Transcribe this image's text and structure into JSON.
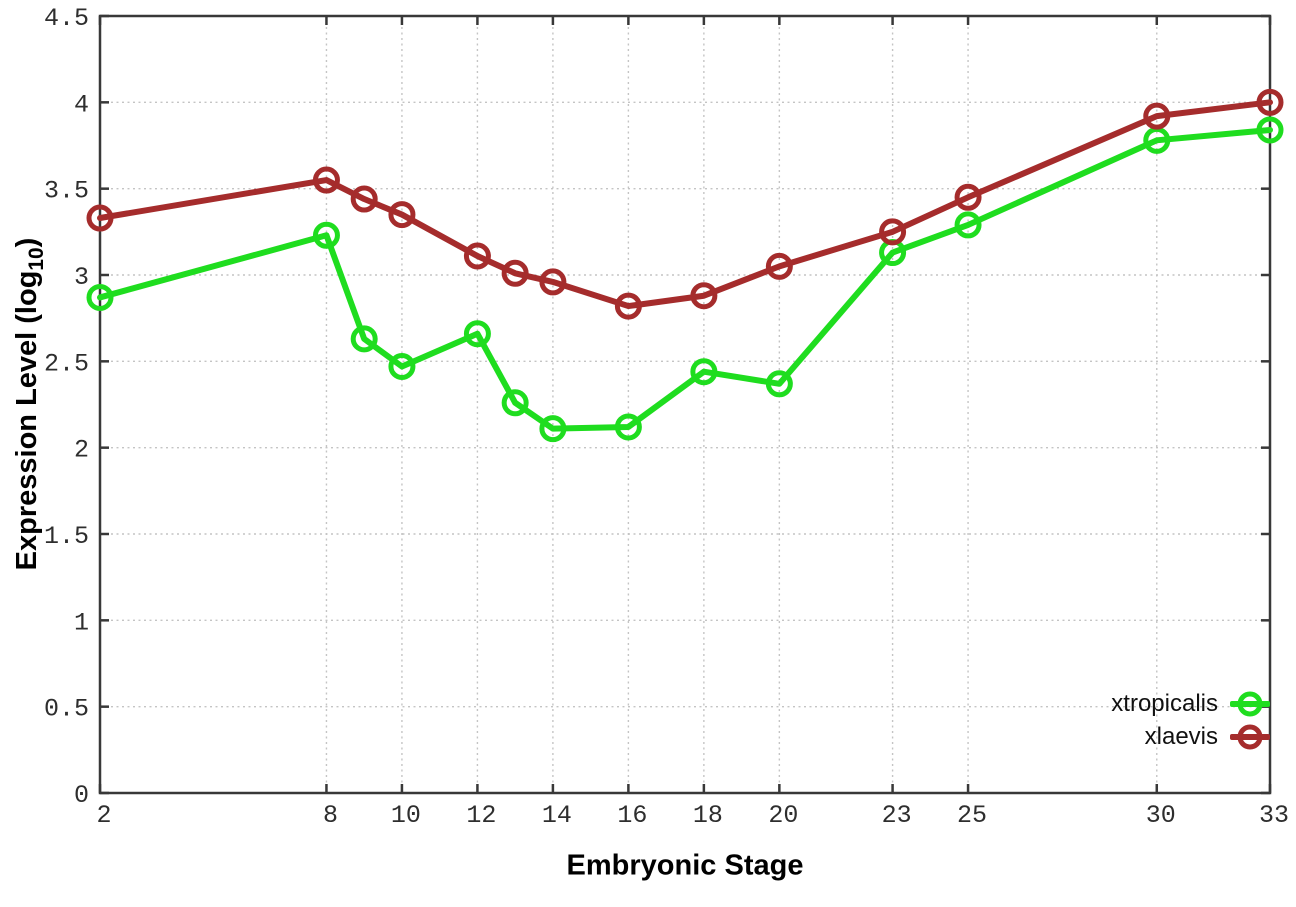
{
  "chart_data": {
    "type": "line",
    "title": "",
    "xlabel": "Embryonic Stage",
    "ylabel": "Expression Level (log10)",
    "ylabel_parts": {
      "main": "Expression Level (log",
      "sub": "10",
      "suffix": ")"
    },
    "x": [
      2,
      8,
      9,
      10,
      12,
      13,
      14,
      16,
      18,
      20,
      23,
      25,
      30,
      33
    ],
    "x_tick_labels": [
      2,
      8,
      10,
      12,
      14,
      16,
      18,
      20,
      23,
      25,
      30,
      33
    ],
    "y_tick_labels": [
      0,
      0.5,
      1,
      1.5,
      2,
      2.5,
      3,
      3.5,
      4,
      4.5
    ],
    "xlim": [
      2,
      33
    ],
    "ylim": [
      0,
      4.5
    ],
    "grid": true,
    "legend_position": "inside bottom-right",
    "series": [
      {
        "name": "xtropicalis",
        "color": "#1fdd1f",
        "values": [
          2.87,
          3.23,
          2.63,
          2.47,
          2.66,
          2.26,
          2.11,
          2.12,
          2.44,
          2.37,
          3.13,
          3.29,
          3.78,
          3.84
        ]
      },
      {
        "name": "xlaevis",
        "color": "#a52c2c",
        "values": [
          3.33,
          3.55,
          3.44,
          3.35,
          3.11,
          3.01,
          2.96,
          2.82,
          2.88,
          3.05,
          3.25,
          3.45,
          3.92,
          4.0
        ]
      }
    ]
  },
  "colors": {
    "background": "#ffffff",
    "axis": "#383838",
    "grid": "#c4c4c4",
    "tick_text": "#2e2e2e",
    "title_text": "#000000"
  }
}
